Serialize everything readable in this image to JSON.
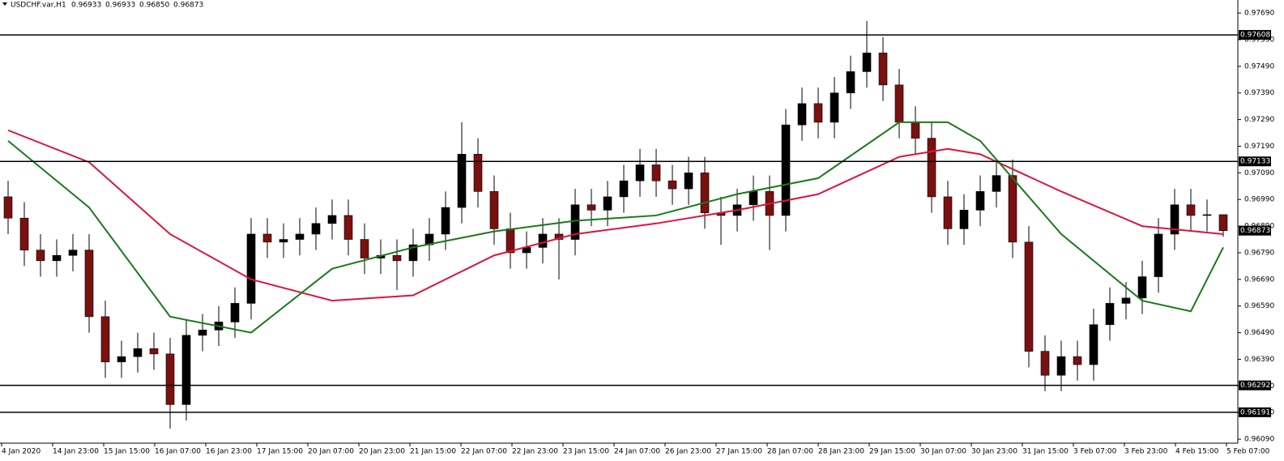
{
  "chart_data": {
    "type": "candlestick",
    "title": "USDCHF.var,H1",
    "title_values": [
      "0.96933",
      "0.96933",
      "0.96850",
      "0.96873"
    ],
    "categories": [
      "4 Jan 2020",
      "14 Jan 23:00",
      "15 Jan 15:00",
      "16 Jan 07:00",
      "16 Jan 23:00",
      "17 Jan 15:00",
      "20 Jan 07:00",
      "20 Jan 23:00",
      "21 Jan 15:00",
      "22 Jan 07:00",
      "22 Jan 23:00",
      "23 Jan 15:00",
      "24 Jan 07:00",
      "26 Jan 23:00",
      "27 Jan 15:00",
      "28 Jan 07:00",
      "28 Jan 23:00",
      "29 Jan 15:00",
      "30 Jan 07:00",
      "30 Jan 23:00",
      "31 Jan 15:00",
      "3 Feb 07:00",
      "3 Feb 23:00",
      "4 Feb 15:00",
      "5 Feb 07:00"
    ],
    "open": [
      0.97,
      0.9692,
      0.968,
      0.9676,
      0.9678,
      0.968,
      0.9655,
      0.9638,
      0.964,
      0.9643,
      0.9641,
      0.9622,
      0.9648,
      0.965,
      0.9653,
      0.966,
      0.9686,
      0.9683,
      0.9684,
      0.9686,
      0.969,
      0.9693,
      0.9684,
      0.9677,
      0.9678,
      0.9676,
      0.9682,
      0.9686,
      0.9696,
      0.9716,
      0.9702,
      0.9688,
      0.9679,
      0.9681,
      0.9686,
      0.9684,
      0.9697,
      0.9695,
      0.97,
      0.9706,
      0.9712,
      0.9706,
      0.9703,
      0.9709,
      0.9694,
      0.9693,
      0.9697,
      0.9702,
      0.9693,
      0.9727,
      0.9735,
      0.9728,
      0.9739,
      0.9747,
      0.9754,
      0.9742,
      0.9728,
      0.9722,
      0.97,
      0.9688,
      0.9695,
      0.9702,
      0.9708,
      0.9683,
      0.9642,
      0.9633,
      0.964,
      0.9637,
      0.9652,
      0.966,
      0.9662,
      0.967,
      0.9686,
      0.9697,
      0.9693,
      0.96933
    ],
    "high": [
      0.9706,
      0.9698,
      0.9686,
      0.9684,
      0.9686,
      0.9686,
      0.9661,
      0.9646,
      0.9649,
      0.9649,
      0.9647,
      0.9654,
      0.9656,
      0.9659,
      0.9666,
      0.9692,
      0.9692,
      0.969,
      0.9692,
      0.9696,
      0.9699,
      0.9699,
      0.969,
      0.9684,
      0.9684,
      0.9688,
      0.9692,
      0.9702,
      0.9728,
      0.9722,
      0.9708,
      0.9694,
      0.9687,
      0.9692,
      0.9692,
      0.9703,
      0.9703,
      0.9706,
      0.9712,
      0.9718,
      0.9718,
      0.9712,
      0.9715,
      0.9715,
      0.97,
      0.9703,
      0.9708,
      0.9708,
      0.9733,
      0.9741,
      0.9741,
      0.9745,
      0.9753,
      0.9766,
      0.976,
      0.9748,
      0.9734,
      0.9728,
      0.9706,
      0.9701,
      0.9708,
      0.9714,
      0.9714,
      0.9689,
      0.9648,
      0.9646,
      0.9646,
      0.9658,
      0.9666,
      0.9668,
      0.9676,
      0.9692,
      0.9703,
      0.9703,
      0.9699,
      0.96933
    ],
    "low": [
      0.9686,
      0.9674,
      0.967,
      0.967,
      0.9672,
      0.9649,
      0.9632,
      0.9632,
      0.9634,
      0.9635,
      0.9613,
      0.9616,
      0.9642,
      0.9644,
      0.9647,
      0.9654,
      0.9677,
      0.9677,
      0.9678,
      0.968,
      0.9684,
      0.9678,
      0.9671,
      0.9671,
      0.9665,
      0.967,
      0.9676,
      0.968,
      0.969,
      0.9696,
      0.9682,
      0.9673,
      0.9673,
      0.9675,
      0.9669,
      0.9678,
      0.9689,
      0.9689,
      0.9694,
      0.97,
      0.97,
      0.9697,
      0.9697,
      0.9688,
      0.9682,
      0.9687,
      0.9691,
      0.968,
      0.9687,
      0.9721,
      0.9722,
      0.9722,
      0.9733,
      0.9741,
      0.9736,
      0.9722,
      0.9716,
      0.9694,
      0.9682,
      0.9682,
      0.9689,
      0.9696,
      0.9677,
      0.9636,
      0.9627,
      0.9627,
      0.9631,
      0.9631,
      0.9646,
      0.9654,
      0.9656,
      0.9664,
      0.968,
      0.9687,
      0.9687,
      0.9685
    ],
    "close": [
      0.9692,
      0.968,
      0.9676,
      0.9678,
      0.968,
      0.9655,
      0.9638,
      0.964,
      0.9643,
      0.9641,
      0.9622,
      0.9648,
      0.965,
      0.9653,
      0.966,
      0.9686,
      0.9683,
      0.9684,
      0.9686,
      0.969,
      0.9693,
      0.9684,
      0.9677,
      0.9678,
      0.9676,
      0.9682,
      0.9686,
      0.9696,
      0.9716,
      0.9702,
      0.9688,
      0.9679,
      0.9681,
      0.9686,
      0.9684,
      0.9697,
      0.9695,
      0.97,
      0.9706,
      0.9712,
      0.9706,
      0.9703,
      0.9709,
      0.9694,
      0.9693,
      0.9697,
      0.9702,
      0.9693,
      0.9727,
      0.9735,
      0.9728,
      0.9739,
      0.9747,
      0.9754,
      0.9742,
      0.9728,
      0.9722,
      0.97,
      0.9688,
      0.9695,
      0.9702,
      0.9708,
      0.9683,
      0.9642,
      0.9633,
      0.964,
      0.9637,
      0.9652,
      0.966,
      0.9662,
      0.967,
      0.9686,
      0.9697,
      0.9693,
      0.96933,
      0.96873
    ],
    "up_color": "#000000",
    "down_color": "#7a1010",
    "series": [
      {
        "color": "#dc143c",
        "x": [
          0,
          5,
          10,
          15,
          20,
          25,
          30,
          35,
          40,
          45,
          50,
          55,
          58,
          60,
          65,
          70,
          75
        ],
        "values": [
          0.9725,
          0.9713,
          0.9686,
          0.9669,
          0.9661,
          0.9663,
          0.9678,
          0.9686,
          0.969,
          0.9695,
          0.9701,
          0.9715,
          0.9718,
          0.9716,
          0.9702,
          0.9689,
          0.9686
        ]
      },
      {
        "color": "#1a7a1a",
        "x": [
          0,
          5,
          10,
          15,
          20,
          25,
          30,
          35,
          40,
          45,
          50,
          55,
          58,
          60,
          65,
          70,
          73,
          75
        ],
        "values": [
          0.9721,
          0.9696,
          0.9655,
          0.9649,
          0.9673,
          0.9681,
          0.9687,
          0.9691,
          0.9693,
          0.9701,
          0.9707,
          0.9728,
          0.9728,
          0.9721,
          0.9686,
          0.9661,
          0.9657,
          0.9681
        ]
      }
    ],
    "levels": [
      {
        "value": 0.97608,
        "label": "0.97608"
      },
      {
        "value": 0.97133,
        "label": "0.97133"
      },
      {
        "value": 0.96292,
        "label": "0.96292"
      },
      {
        "value": 0.96191,
        "label": "0.96191"
      }
    ],
    "ylim": [
      0.96075,
      0.97739
    ],
    "yticks": [
      {
        "value": 0.9769,
        "label": "0.97690"
      },
      {
        "value": 0.9759,
        "label": "0.97590"
      },
      {
        "value": 0.9749,
        "label": "0.97490"
      },
      {
        "value": 0.9739,
        "label": "0.97390"
      },
      {
        "value": 0.9729,
        "label": "0.97290"
      },
      {
        "value": 0.9719,
        "label": "0.97190"
      },
      {
        "value": 0.9709,
        "label": "0.97090"
      },
      {
        "value": 0.9699,
        "label": "0.96990"
      },
      {
        "value": 0.9689,
        "label": "0.96890"
      },
      {
        "value": 0.9679,
        "label": "0.96790"
      },
      {
        "value": 0.9669,
        "label": "0.96690"
      },
      {
        "value": 0.9659,
        "label": "0.96590"
      },
      {
        "value": 0.9649,
        "label": "0.96490"
      },
      {
        "value": 0.9639,
        "label": "0.96390"
      },
      {
        "value": 0.9629,
        "label": "0.96290"
      },
      {
        "value": 0.9619,
        "label": "0.96190"
      },
      {
        "value": 0.9609,
        "label": "0.96090"
      }
    ]
  }
}
